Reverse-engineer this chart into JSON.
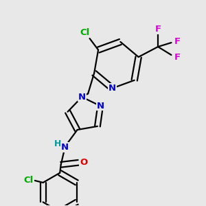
{
  "background_color": "#e8e8e8",
  "bond_color": "#000000",
  "atom_colors": {
    "N": "#0000cc",
    "O": "#dd0000",
    "Cl": "#00aa00",
    "F": "#dd00dd",
    "H": "#009999",
    "C": "#000000"
  },
  "figsize": [
    3.0,
    3.0
  ],
  "dpi": 100
}
